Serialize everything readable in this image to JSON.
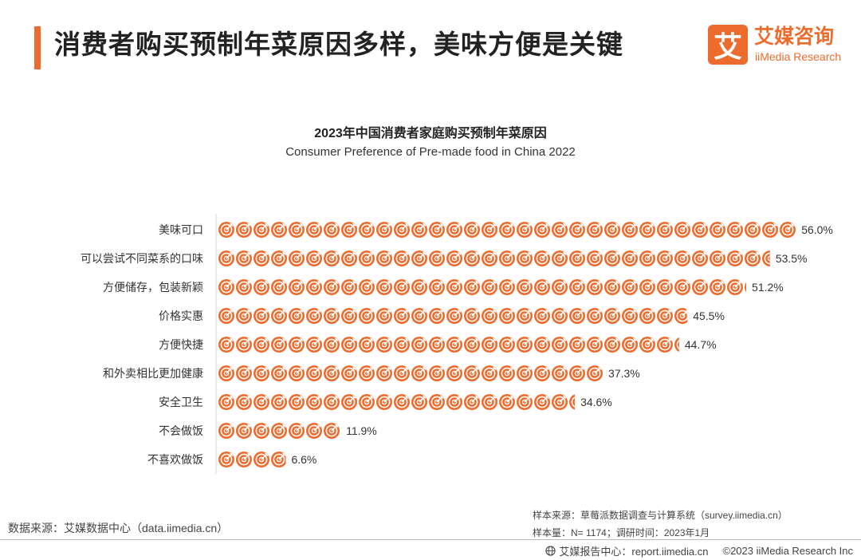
{
  "header": {
    "title": "消费者购买预制年菜原因多样，美味方便是关键",
    "logo_mark": "艾",
    "logo_cn": "艾媒咨询",
    "logo_en": "iiMedia Research"
  },
  "chart_data": {
    "type": "bar",
    "title": "2023年中国消费者家庭购买预制年菜原因",
    "subtitle": "Consumer Preference of Pre-made food in China 2022",
    "categories": [
      "美味可口",
      "可以尝试不同菜系的口味",
      "方便储存，包装新颖",
      "价格实惠",
      "方便快捷",
      "和外卖相比更加健康",
      "安全卫生",
      "不会做饭",
      "不喜欢做饭"
    ],
    "values": [
      56.0,
      53.5,
      51.2,
      45.5,
      44.7,
      37.3,
      34.6,
      11.9,
      6.6
    ],
    "value_labels": [
      "56.0%",
      "53.5%",
      "51.2%",
      "45.5%",
      "44.7%",
      "37.3%",
      "34.6%",
      "11.9%",
      "6.6%"
    ],
    "unit": "%",
    "orientation": "horizontal",
    "mark_style": "repeated-target-icons",
    "color": "#ec6b2d"
  },
  "footer": {
    "source_left": "数据来源：艾媒数据中心（data.iimedia.cn）",
    "sample_source": "样本来源：草莓派数据调查与计算系统（survey.iimedia.cn）",
    "sample_size": "样本量：N= 1174；调研时间：2023年1月",
    "report_center": "艾媒报告中心：report.iimedia.cn",
    "copyright": "©2023  iiMedia Research  Inc"
  }
}
